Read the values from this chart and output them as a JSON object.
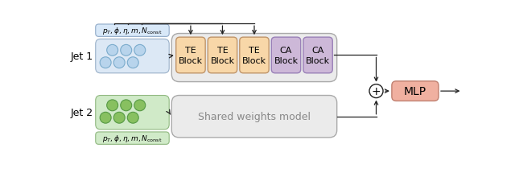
{
  "jet1_label": "Jet 1",
  "jet2_label": "Jet 2",
  "param_label": "$p_T, \\phi, \\eta, m, N_{\\mathrm{const}}$",
  "te_label": "TE\nBlock",
  "ca_label": "CA\nBlock",
  "mlp_label": "MLP",
  "shared_label": "Shared weights model",
  "te_color": "#f8d7a8",
  "te_edge": "#c0956a",
  "ca_color": "#cdb8d8",
  "ca_edge": "#9a80b8",
  "mlp_color": "#f0b0a0",
  "mlp_edge": "#c08070",
  "jet1_particle_color": "#b8d4ec",
  "jet1_particle_edge": "#7aabcc",
  "jet1_box_color": "#dce8f5",
  "jet1_box_edge": "#9ab0c8",
  "jet2_particle_color": "#88c060",
  "jet2_particle_edge": "#559944",
  "jet2_box_color": "#d0eac8",
  "jet2_box_edge": "#90b880",
  "param1_box_color": "#d8e8f8",
  "param1_box_edge": "#90aac8",
  "param2_box_color": "#d0eac8",
  "param2_box_edge": "#90b880",
  "block_group_color": "#ebebeb",
  "block_group_edge": "#aaaaaa",
  "shared_box_color": "#ebebeb",
  "shared_box_edge": "#aaaaaa",
  "arrow_color": "#222222",
  "line_color": "#222222"
}
